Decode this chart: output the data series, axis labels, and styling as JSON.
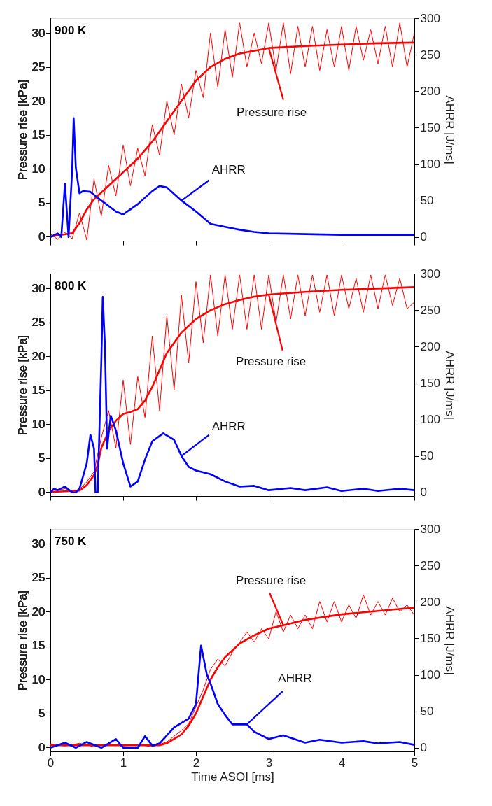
{
  "chart_data": [
    {
      "type": "line",
      "ylabel": "Pressure rise [kPa]",
      "y2label": "AHRR [J/ms]",
      "xlim": [
        0,
        5
      ],
      "xticks": [
        0,
        1,
        2,
        3,
        4,
        5
      ],
      "ylim": [
        -0.6,
        32.2
      ],
      "yticks": [
        0,
        5,
        10,
        15,
        20,
        25,
        30
      ],
      "y2lim": [
        -5,
        300
      ],
      "y2ticks": [
        0,
        50,
        100,
        150,
        200,
        250,
        300
      ],
      "tick_labels": "y",
      "line_style": "solid",
      "annotations": [
        "900 K",
        {
          "text": "Pressure rise",
          "x": 3.0,
          "y": 27.8
        },
        {
          "text": "AHRR",
          "x": 1.8,
          "y": 5.3
        }
      ],
      "series": [
        {
          "color": "#ff0000",
          "x": [
            0,
            0.1,
            0.2,
            0.3,
            0.4,
            0.5,
            0.6,
            0.7,
            0.8,
            0.9,
            1.0,
            1.1,
            1.2,
            1.3,
            1.4,
            1.5,
            1.6,
            1.7,
            1.8,
            1.9,
            2.0,
            2.1,
            2.2,
            2.3,
            2.4,
            2.5,
            2.6,
            2.7,
            2.8,
            2.9,
            3.0,
            3.1,
            3.2,
            3.3,
            3.4,
            3.5,
            3.6,
            3.7,
            3.8,
            3.9,
            4.0,
            4.1,
            4.2,
            4.3,
            4.4,
            4.5,
            4.6,
            4.7,
            4.8,
            4.9,
            5.0
          ],
          "values": [
            0.4,
            -0.4,
            0.6,
            -0.3,
            3.5,
            -0.5,
            8.5,
            3,
            10.5,
            6,
            13.5,
            7.5,
            13,
            9,
            16.5,
            12,
            20,
            15,
            22.5,
            17.5,
            24.5,
            20.5,
            30,
            22,
            30.5,
            23.5,
            31.5,
            25,
            30,
            25.5,
            31.5,
            24.5,
            31.5,
            24,
            31,
            25,
            31,
            24.5,
            30.5,
            25,
            31,
            24.5,
            31,
            26,
            30.5,
            25.5,
            31,
            25,
            31.5,
            25,
            30
          ]
        },
        {
          "color": "#ff0000",
          "x": [
            0,
            0.3,
            0.4,
            0.5,
            0.6,
            0.8,
            1.0,
            1.2,
            1.4,
            1.6,
            1.8,
            2.0,
            2.2,
            2.4,
            2.6,
            3.0,
            3.5,
            4.0,
            4.5,
            5.0
          ],
          "values": [
            0,
            0.5,
            2,
            4,
            5.5,
            7.5,
            9.5,
            11.5,
            14,
            17,
            20,
            23,
            25,
            26.2,
            27,
            27.8,
            28.1,
            28.3,
            28.5,
            28.6
          ]
        },
        {
          "color": "#0000ff",
          "axis": "y2",
          "x": [
            0,
            0.1,
            0.15,
            0.2,
            0.25,
            0.3,
            0.32,
            0.35,
            0.4,
            0.45,
            0.55,
            0.7,
            0.9,
            1.0,
            1.2,
            1.4,
            1.5,
            1.6,
            1.8,
            2.0,
            2.2,
            2.4,
            2.6,
            2.8,
            3.0,
            3.5,
            4.0,
            5.0
          ],
          "values": [
            0,
            5,
            0,
            73,
            0,
            93,
            163,
            95,
            60,
            63,
            62,
            50,
            35,
            31,
            45,
            63,
            70,
            68,
            50,
            35,
            18,
            14,
            10,
            7,
            5,
            4,
            3,
            3
          ]
        }
      ]
    },
    {
      "type": "line",
      "ylabel": "Pressure rise [kPa]",
      "y2label": "AHRR [J/ms]",
      "xlim": [
        0,
        5
      ],
      "xticks": [
        0,
        1,
        2,
        3,
        4,
        5
      ],
      "ylim": [
        -0.6,
        32.2
      ],
      "yticks": [
        0,
        5,
        10,
        15,
        20,
        25,
        30
      ],
      "y2lim": [
        -5,
        300
      ],
      "y2ticks": [
        0,
        50,
        100,
        150,
        200,
        250,
        300
      ],
      "tick_labels": "y",
      "line_style": "solid",
      "annotations": [
        "800 K",
        {
          "text": "Pressure rise",
          "x": 3.0,
          "y": 29.1
        },
        {
          "text": "AHRR",
          "x": 1.8,
          "y": 5.3
        }
      ],
      "series": [
        {
          "color": "#ff0000",
          "x": [
            0,
            0.1,
            0.2,
            0.3,
            0.4,
            0.5,
            0.6,
            0.7,
            0.8,
            0.9,
            1.0,
            1.1,
            1.2,
            1.3,
            1.4,
            1.5,
            1.6,
            1.7,
            1.8,
            1.9,
            2.0,
            2.1,
            2.2,
            2.3,
            2.4,
            2.5,
            2.6,
            2.7,
            2.8,
            2.9,
            3.0,
            3.1,
            3.2,
            3.3,
            3.4,
            3.5,
            3.6,
            3.7,
            3.8,
            3.9,
            4.0,
            4.1,
            4.2,
            4.3,
            4.4,
            4.5,
            4.6,
            4.7,
            4.8,
            4.9,
            5.0
          ],
          "values": [
            0.3,
            0.2,
            0.5,
            0.1,
            0.4,
            1.5,
            3,
            8,
            12,
            6.5,
            16.5,
            7,
            17,
            11,
            23,
            12,
            26,
            15,
            29,
            19,
            31,
            22,
            32,
            23,
            32,
            24,
            32,
            24,
            32,
            24,
            32,
            25,
            32,
            25.5,
            32,
            26,
            32,
            26.5,
            32,
            26,
            32,
            27,
            31.5,
            26.5,
            32,
            27,
            32,
            27.5,
            31.5,
            27,
            28
          ]
        },
        {
          "color": "#ff0000",
          "x": [
            0,
            0.4,
            0.5,
            0.6,
            0.65,
            0.7,
            0.8,
            0.9,
            1.0,
            1.1,
            1.2,
            1.3,
            1.4,
            1.5,
            1.6,
            1.8,
            2.0,
            2.2,
            2.4,
            2.6,
            2.8,
            3.0,
            3.5,
            4.0,
            4.5,
            5.0
          ],
          "values": [
            0,
            0.2,
            1,
            2.5,
            4,
            6.5,
            9,
            10.5,
            11.5,
            11.8,
            12.2,
            13.5,
            15.5,
            18,
            20.5,
            23.5,
            25.5,
            26.8,
            27.7,
            28.3,
            28.8,
            29.1,
            29.5,
            29.8,
            30,
            30.2
          ]
        },
        {
          "color": "#0000ff",
          "axis": "y2",
          "x": [
            0,
            0.05,
            0.1,
            0.2,
            0.3,
            0.35,
            0.4,
            0.5,
            0.55,
            0.6,
            0.62,
            0.65,
            0.7,
            0.72,
            0.75,
            0.78,
            0.8,
            0.83,
            0.9,
            1.0,
            1.1,
            1.2,
            1.3,
            1.4,
            1.55,
            1.7,
            1.8,
            1.9,
            2.0,
            2.2,
            2.4,
            2.6,
            2.8,
            3.0,
            3.3,
            3.5,
            3.8,
            4.0,
            4.3,
            4.5,
            4.8,
            5.0
          ],
          "values": [
            0,
            5,
            3,
            8,
            0,
            0,
            5,
            40,
            79,
            60,
            0,
            0,
            180,
            268,
            200,
            60,
            80,
            105,
            85,
            40,
            8,
            15,
            45,
            70,
            81,
            72,
            50,
            35,
            30,
            25,
            15,
            8,
            9,
            3,
            6,
            3,
            7,
            2,
            5,
            2,
            5,
            3
          ]
        }
      ]
    },
    {
      "type": "line",
      "xlabel": "Time ASOI [ms]",
      "ylabel": "Pressure rise [kPa]",
      "y2label": "AHRR [J/ms]",
      "xlim": [
        0,
        5
      ],
      "xticks": [
        0,
        1,
        2,
        3,
        4,
        5
      ],
      "ylim": [
        -0.6,
        32.2
      ],
      "yticks": [
        0,
        5,
        10,
        15,
        20,
        25,
        30
      ],
      "y2lim": [
        -5,
        300
      ],
      "y2ticks": [
        0,
        50,
        100,
        150,
        200,
        250,
        300
      ],
      "line_style": "solid",
      "annotations": [
        "750 K",
        {
          "text": "Pressure rise",
          "x": 3.2,
          "y": 18
        },
        {
          "text": "AHRR",
          "x": 2.7,
          "y": 3.4
        }
      ],
      "series": [
        {
          "color": "#ff0000",
          "x": [
            0,
            0.2,
            0.4,
            0.6,
            0.8,
            1.0,
            1.2,
            1.4,
            1.6,
            1.8,
            1.9,
            2.0,
            2.1,
            2.2,
            2.3,
            2.4,
            2.5,
            2.6,
            2.7,
            2.8,
            2.9,
            3.0,
            3.1,
            3.2,
            3.3,
            3.4,
            3.5,
            3.6,
            3.7,
            3.8,
            3.9,
            4.0,
            4.1,
            4.2,
            4.3,
            4.4,
            4.5,
            4.6,
            4.7,
            4.8,
            4.9,
            5.0
          ],
          "values": [
            0.5,
            0.2,
            0.6,
            0.1,
            0.5,
            0.2,
            0.4,
            0.1,
            0.8,
            2.5,
            3.5,
            6,
            8.5,
            11.5,
            13,
            12,
            14,
            15.5,
            17,
            15.5,
            17.5,
            16,
            20,
            17,
            19.5,
            17.5,
            19.5,
            17.5,
            21.5,
            18.5,
            21.5,
            18.5,
            21,
            19,
            22.5,
            19.5,
            21.5,
            19.5,
            22,
            20,
            21,
            19.5
          ]
        },
        {
          "color": "#ff0000",
          "x": [
            0,
            1.5,
            1.6,
            1.8,
            1.9,
            2.0,
            2.1,
            2.2,
            2.3,
            2.4,
            2.6,
            2.8,
            3.0,
            3.2,
            3.5,
            4.0,
            4.5,
            5.0
          ],
          "values": [
            0.3,
            0.3,
            0.6,
            1.9,
            3.2,
            5,
            7.5,
            10,
            11.8,
            13.3,
            15.3,
            16.5,
            17.5,
            18,
            18.8,
            19.6,
            20.1,
            20.6
          ]
        },
        {
          "color": "#0000ff",
          "axis": "y2",
          "x": [
            0,
            0.2,
            0.35,
            0.5,
            0.7,
            0.9,
            1.0,
            1.2,
            1.3,
            1.4,
            1.5,
            1.7,
            1.9,
            2.0,
            2.07,
            2.15,
            2.2,
            2.3,
            2.4,
            2.5,
            2.7,
            2.8,
            3.0,
            3.2,
            3.5,
            3.7,
            4.0,
            4.3,
            4.5,
            4.8,
            5.0
          ],
          "values": [
            0,
            7,
            0,
            8,
            0,
            12,
            0,
            0,
            16,
            3,
            6,
            28,
            40,
            60,
            140,
            100,
            88,
            60,
            45,
            32,
            32,
            22,
            12,
            17,
            7,
            11,
            7,
            9,
            6,
            8,
            4
          ]
        }
      ]
    }
  ]
}
